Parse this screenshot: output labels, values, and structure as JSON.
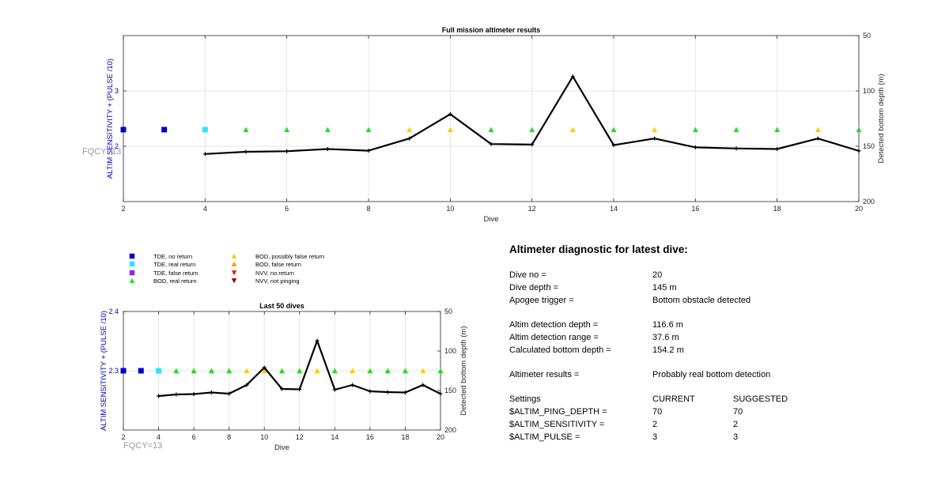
{
  "colors": {
    "tde_no_return": "#0000cc",
    "tde_real_return": "#33e0ff",
    "tde_false_return": "#8a2be2",
    "bod_real_return": "#22dd22",
    "bod_possibly_false": "#ffcc00",
    "bod_false_return": "#ff9900",
    "nvv_no_return": "#e02020",
    "nvv_not_pinging": "#8b0000",
    "left_axis": "#0000b0",
    "fqcy": "#999999"
  },
  "chart_data": [
    {
      "type": "line",
      "title": "Full mission altimeter results",
      "xlabel": "Dive",
      "ylabel": "ALTIM SENSITIVITY + (PULSE /10)",
      "ylabel_right": "Detected bottom depth (m)",
      "xlim": [
        2,
        20
      ],
      "ylim": [
        1,
        4
      ],
      "ylim_right": [
        200,
        50
      ],
      "xticks": [
        2,
        4,
        6,
        8,
        10,
        12,
        14,
        16,
        18,
        20
      ],
      "yticks": [
        2,
        3
      ],
      "yticks_right": [
        50,
        100,
        150,
        200
      ],
      "grid": true,
      "annotation": "FQCY=13",
      "depth_line": {
        "x": [
          4,
          5,
          6,
          7,
          8,
          9,
          10,
          11,
          12,
          13,
          14,
          15,
          16,
          17,
          18,
          19,
          20
        ],
        "y": [
          157,
          155,
          154.5,
          152.5,
          154,
          143,
          121,
          148,
          148.5,
          87,
          149,
          143,
          151,
          152,
          152.5,
          143,
          154.2
        ]
      },
      "markers": {
        "y": 2.3,
        "x": [
          2,
          3,
          4,
          5,
          6,
          7,
          8,
          9,
          10,
          11,
          12,
          13,
          14,
          15,
          16,
          17,
          18,
          19,
          20
        ],
        "codes": [
          "tde_no_return",
          "tde_no_return",
          "tde_real_return",
          "bod_real_return",
          "bod_real_return",
          "bod_real_return",
          "bod_real_return",
          "bod_possibly_false",
          "bod_possibly_false",
          "bod_real_return",
          "bod_real_return",
          "bod_possibly_false",
          "bod_real_return",
          "bod_possibly_false",
          "bod_real_return",
          "bod_real_return",
          "bod_real_return",
          "bod_possibly_false",
          "bod_real_return"
        ]
      }
    },
    {
      "type": "line",
      "title": "Last 50 dives",
      "xlabel": "Dive",
      "ylabel": "ALTIM SENSITIVITY + (PULSE /10)",
      "ylabel_right": "Detected bottom depth (m)",
      "xlim": [
        2,
        20
      ],
      "ylim": [
        2.2,
        2.4
      ],
      "ylim_right": [
        200,
        50
      ],
      "xticks": [
        2,
        4,
        6,
        8,
        10,
        12,
        14,
        16,
        18,
        20
      ],
      "yticks": [
        2.3,
        2.4
      ],
      "yticks_right": [
        50,
        100,
        150,
        200
      ],
      "grid": true,
      "annotation": "FQCY=13",
      "depth_line": {
        "x": [
          4,
          5,
          6,
          7,
          8,
          9,
          10,
          11,
          12,
          13,
          14,
          15,
          16,
          17,
          18,
          19,
          20
        ],
        "y": [
          157,
          155,
          154.5,
          152.5,
          154,
          143,
          121,
          148,
          148.5,
          87,
          149,
          143,
          151,
          152,
          152.5,
          143,
          154.2
        ]
      },
      "markers": {
        "y": 2.3,
        "x": [
          2,
          3,
          4,
          5,
          6,
          7,
          8,
          9,
          10,
          11,
          12,
          13,
          14,
          15,
          16,
          17,
          18,
          19,
          20
        ],
        "codes": [
          "tde_no_return",
          "tde_no_return",
          "tde_real_return",
          "bod_real_return",
          "bod_real_return",
          "bod_real_return",
          "bod_real_return",
          "bod_possibly_false",
          "bod_possibly_false",
          "bod_real_return",
          "bod_real_return",
          "bod_possibly_false",
          "bod_real_return",
          "bod_possibly_false",
          "bod_real_return",
          "bod_real_return",
          "bod_real_return",
          "bod_possibly_false",
          "bod_real_return"
        ]
      }
    }
  ],
  "legend": [
    {
      "code": "tde_no_return",
      "shape": "square",
      "label": "TDE, no return"
    },
    {
      "code": "tde_real_return",
      "shape": "square",
      "label": "TDE, real return"
    },
    {
      "code": "tde_false_return",
      "shape": "square",
      "label": "TDE, false return"
    },
    {
      "code": "bod_real_return",
      "shape": "triangle-up",
      "label": "BOD, real return"
    },
    {
      "code": "bod_possibly_false",
      "shape": "triangle-up",
      "label": "BOD, possibly false return"
    },
    {
      "code": "bod_false_return",
      "shape": "triangle-up",
      "label": "BOD, false return"
    },
    {
      "code": "nvv_no_return",
      "shape": "triangle-down",
      "label": "NVV, no return"
    },
    {
      "code": "nvv_not_pinging",
      "shape": "triangle-down",
      "label": "NVV, not pinging"
    }
  ],
  "diagnostic": {
    "title": "Altimeter diagnostic for latest dive:",
    "dive_no_label": "Dive no =",
    "dive_no_value": "20",
    "dive_depth_label": "Dive depth =",
    "dive_depth_value": "145 m",
    "apogee_label": "Apogee trigger =",
    "apogee_value": "Bottom obstacle detected",
    "altim_depth_label": "Altim detection depth =",
    "altim_depth_value": "116.6 m",
    "altim_range_label": "Altim detection range =",
    "altim_range_value": "37.6 m",
    "calc_bottom_label": "Calculated bottom depth =",
    "calc_bottom_value": "154.2 m",
    "results_label": "Altimeter results =",
    "results_value": "Probably real bottom detection",
    "settings_label": "Settings",
    "current_header": "CURRENT",
    "suggested_header": "SUGGESTED",
    "ping_depth_label": "$ALTIM_PING_DEPTH =",
    "ping_depth_current": "70",
    "ping_depth_suggested": "70",
    "sensitivity_label": "$ALTIM_SENSITIVITY =",
    "sensitivity_current": "2",
    "sensitivity_suggested": "2",
    "pulse_label": "$ALTIM_PULSE =",
    "pulse_current": "3",
    "pulse_suggested": "3"
  }
}
